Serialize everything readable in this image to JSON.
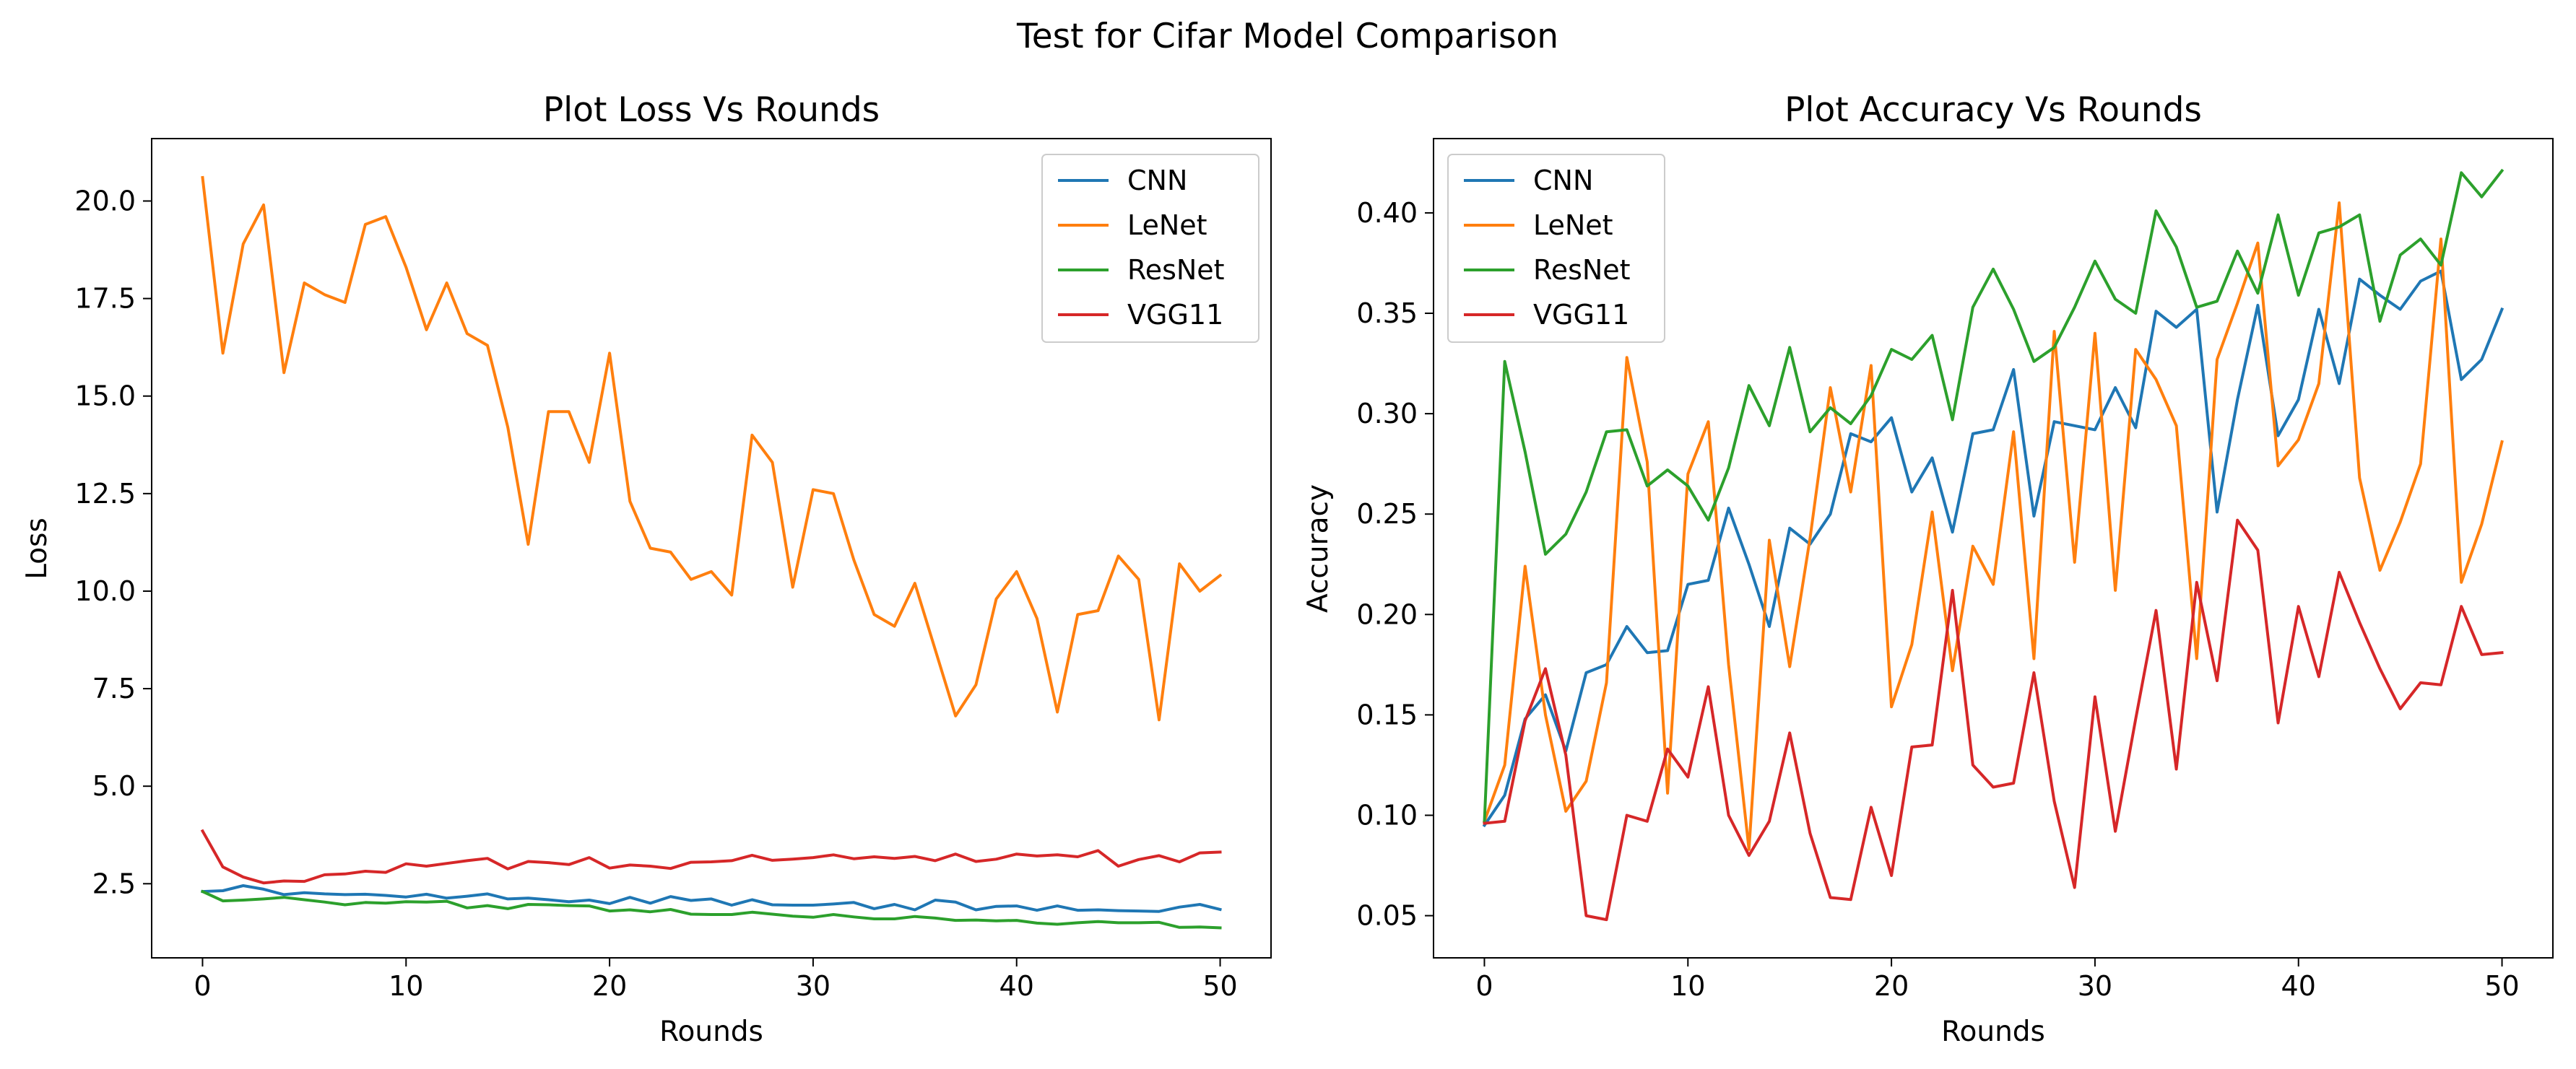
{
  "suptitle": "Test for Cifar Model Comparison",
  "colors": {
    "CNN": "#1f77b4",
    "LeNet": "#ff7f0e",
    "ResNet": "#2ca02c",
    "VGG11": "#d62728"
  },
  "chart_data": [
    {
      "type": "line",
      "title": "Plot Loss Vs Rounds",
      "xlabel": "Rounds",
      "ylabel": "Loss",
      "xlim": [
        -2.5,
        52.5
      ],
      "ylim": [
        0.6,
        21.6
      ],
      "xticks": [
        0,
        10,
        20,
        30,
        40,
        50
      ],
      "xtick_labels": [
        "0",
        "10",
        "20",
        "30",
        "40",
        "50"
      ],
      "yticks": [
        2.5,
        5.0,
        7.5,
        10.0,
        12.5,
        15.0,
        17.5,
        20.0
      ],
      "ytick_labels": [
        "2.5",
        "5.0",
        "7.5",
        "10.0",
        "12.5",
        "15.0",
        "17.5",
        "20.0"
      ],
      "legend_loc": "upper right",
      "x": [
        0,
        1,
        2,
        3,
        4,
        5,
        6,
        7,
        8,
        9,
        10,
        11,
        12,
        13,
        14,
        15,
        16,
        17,
        18,
        19,
        20,
        21,
        22,
        23,
        24,
        25,
        26,
        27,
        28,
        29,
        30,
        31,
        32,
        33,
        34,
        35,
        36,
        37,
        38,
        39,
        40,
        41,
        42,
        43,
        44,
        45,
        46,
        47,
        48,
        49,
        50
      ],
      "series": [
        {
          "name": "CNN",
          "values": [
            2.3,
            2.32,
            2.45,
            2.36,
            2.22,
            2.27,
            2.24,
            2.22,
            2.23,
            2.2,
            2.16,
            2.23,
            2.13,
            2.18,
            2.24,
            2.11,
            2.13,
            2.09,
            2.04,
            2.08,
            1.99,
            2.15,
            2.0,
            2.17,
            2.07,
            2.11,
            1.95,
            2.09,
            1.96,
            1.95,
            1.95,
            1.98,
            2.02,
            1.86,
            1.97,
            1.83,
            2.08,
            2.03,
            1.83,
            1.92,
            1.93,
            1.82,
            1.93,
            1.82,
            1.83,
            1.81,
            1.8,
            1.79,
            1.9,
            1.97,
            1.84
          ]
        },
        {
          "name": "LeNet",
          "values": [
            20.6,
            16.1,
            18.9,
            19.9,
            15.6,
            17.9,
            17.6,
            17.4,
            19.4,
            19.6,
            18.3,
            16.7,
            17.9,
            16.6,
            16.3,
            14.2,
            11.2,
            14.6,
            14.6,
            13.3,
            16.1,
            12.3,
            11.1,
            11.0,
            10.3,
            10.5,
            9.9,
            14.0,
            13.3,
            10.1,
            12.6,
            12.5,
            10.8,
            9.4,
            9.1,
            10.2,
            8.5,
            6.8,
            7.6,
            9.8,
            10.5,
            9.3,
            6.9,
            9.4,
            9.5,
            10.9,
            10.3,
            6.7,
            10.7,
            10.0,
            10.4
          ]
        },
        {
          "name": "ResNet",
          "values": [
            2.3,
            2.06,
            2.08,
            2.11,
            2.15,
            2.09,
            2.03,
            1.96,
            2.02,
            2.0,
            2.04,
            2.03,
            2.05,
            1.88,
            1.94,
            1.86,
            1.97,
            1.96,
            1.94,
            1.93,
            1.8,
            1.83,
            1.78,
            1.84,
            1.72,
            1.71,
            1.71,
            1.77,
            1.72,
            1.67,
            1.64,
            1.71,
            1.65,
            1.6,
            1.6,
            1.66,
            1.62,
            1.56,
            1.57,
            1.55,
            1.56,
            1.49,
            1.46,
            1.5,
            1.53,
            1.5,
            1.5,
            1.51,
            1.38,
            1.39,
            1.37
          ]
        },
        {
          "name": "VGG11",
          "values": [
            3.85,
            2.93,
            2.67,
            2.52,
            2.57,
            2.56,
            2.73,
            2.75,
            2.82,
            2.79,
            3.01,
            2.95,
            3.02,
            3.09,
            3.15,
            2.88,
            3.07,
            3.04,
            2.99,
            3.17,
            2.9,
            2.98,
            2.95,
            2.89,
            3.05,
            3.06,
            3.09,
            3.23,
            3.1,
            3.13,
            3.17,
            3.24,
            3.14,
            3.19,
            3.15,
            3.2,
            3.09,
            3.26,
            3.07,
            3.13,
            3.26,
            3.21,
            3.24,
            3.19,
            3.35,
            2.95,
            3.12,
            3.22,
            3.06,
            3.29,
            3.31
          ]
        }
      ]
    },
    {
      "type": "line",
      "title": "Plot Accuracy Vs Rounds",
      "xlabel": "Rounds",
      "ylabel": "Accuracy",
      "xlim": [
        -2.5,
        52.5
      ],
      "ylim": [
        0.029,
        0.437
      ],
      "xticks": [
        0,
        10,
        20,
        30,
        40,
        50
      ],
      "xtick_labels": [
        "0",
        "10",
        "20",
        "30",
        "40",
        "50"
      ],
      "yticks": [
        0.05,
        0.1,
        0.15,
        0.2,
        0.25,
        0.3,
        0.35,
        0.4
      ],
      "ytick_labels": [
        "0.05",
        "0.10",
        "0.15",
        "0.20",
        "0.25",
        "0.30",
        "0.35",
        "0.40"
      ],
      "legend_loc": "upper left",
      "x": [
        0,
        1,
        2,
        3,
        4,
        5,
        6,
        7,
        8,
        9,
        10,
        11,
        12,
        13,
        14,
        15,
        16,
        17,
        18,
        19,
        20,
        21,
        22,
        23,
        24,
        25,
        26,
        27,
        28,
        29,
        30,
        31,
        32,
        33,
        34,
        35,
        36,
        37,
        38,
        39,
        40,
        41,
        42,
        43,
        44,
        45,
        46,
        47,
        48,
        49,
        50
      ],
      "series": [
        {
          "name": "CNN",
          "values": [
            0.095,
            0.11,
            0.148,
            0.16,
            0.132,
            0.171,
            0.175,
            0.194,
            0.181,
            0.182,
            0.215,
            0.217,
            0.253,
            0.225,
            0.194,
            0.243,
            0.235,
            0.25,
            0.29,
            0.286,
            0.298,
            0.261,
            0.278,
            0.241,
            0.29,
            0.292,
            0.322,
            0.249,
            0.296,
            0.294,
            0.292,
            0.313,
            0.293,
            0.351,
            0.343,
            0.352,
            0.251,
            0.307,
            0.354,
            0.289,
            0.307,
            0.352,
            0.315,
            0.367,
            0.359,
            0.352,
            0.366,
            0.371,
            0.317,
            0.327,
            0.352
          ]
        },
        {
          "name": "LeNet",
          "values": [
            0.097,
            0.125,
            0.224,
            0.15,
            0.102,
            0.117,
            0.166,
            0.328,
            0.276,
            0.111,
            0.27,
            0.296,
            0.175,
            0.083,
            0.237,
            0.174,
            0.238,
            0.313,
            0.261,
            0.324,
            0.154,
            0.185,
            0.251,
            0.172,
            0.234,
            0.215,
            0.291,
            0.178,
            0.341,
            0.226,
            0.34,
            0.212,
            0.332,
            0.317,
            0.294,
            0.178,
            0.327,
            0.355,
            0.385,
            0.274,
            0.287,
            0.315,
            0.405,
            0.268,
            0.222,
            0.246,
            0.275,
            0.387,
            0.216,
            0.245,
            0.286
          ]
        },
        {
          "name": "ResNet",
          "values": [
            0.097,
            0.326,
            0.281,
            0.23,
            0.24,
            0.261,
            0.291,
            0.292,
            0.264,
            0.272,
            0.264,
            0.247,
            0.273,
            0.314,
            0.294,
            0.333,
            0.291,
            0.303,
            0.295,
            0.309,
            0.332,
            0.327,
            0.339,
            0.297,
            0.353,
            0.372,
            0.352,
            0.326,
            0.333,
            0.353,
            0.376,
            0.357,
            0.35,
            0.401,
            0.383,
            0.353,
            0.356,
            0.381,
            0.36,
            0.399,
            0.359,
            0.39,
            0.393,
            0.399,
            0.346,
            0.379,
            0.387,
            0.374,
            0.42,
            0.408,
            0.421
          ]
        },
        {
          "name": "VGG11",
          "values": [
            0.096,
            0.097,
            0.147,
            0.173,
            0.13,
            0.05,
            0.048,
            0.1,
            0.097,
            0.133,
            0.119,
            0.164,
            0.1,
            0.08,
            0.097,
            0.141,
            0.091,
            0.059,
            0.058,
            0.104,
            0.07,
            0.134,
            0.135,
            0.212,
            0.125,
            0.114,
            0.116,
            0.171,
            0.107,
            0.064,
            0.159,
            0.092,
            0.148,
            0.202,
            0.123,
            0.216,
            0.167,
            0.247,
            0.232,
            0.146,
            0.204,
            0.169,
            0.221,
            0.196,
            0.173,
            0.153,
            0.166,
            0.165,
            0.204,
            0.18,
            0.181
          ]
        }
      ]
    }
  ]
}
